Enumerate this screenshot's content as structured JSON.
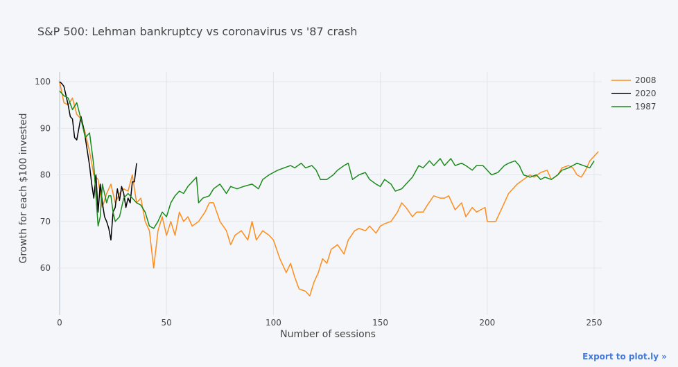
{
  "chart_data": {
    "type": "line",
    "title": "S&P 500: Lehman bankruptcy vs coronavirus vs '87 crash",
    "xlabel": "Number of sessions",
    "ylabel": "Growth for each $100 invested",
    "xlim": [
      -1,
      255
    ],
    "ylim": [
      52,
      102
    ],
    "xticks": [
      0,
      50,
      100,
      150,
      200,
      250
    ],
    "yticks": [
      60,
      70,
      80,
      90,
      100
    ],
    "grid": true,
    "legend": "top-right",
    "series": [
      {
        "name": "2008",
        "color": "#ff8c1a",
        "x": [
          0,
          2,
          4,
          6,
          8,
          10,
          12,
          14,
          16,
          18,
          20,
          22,
          24,
          26,
          28,
          30,
          32,
          34,
          36,
          38,
          40,
          42,
          44,
          46,
          48,
          50,
          52,
          54,
          56,
          58,
          60,
          62,
          65,
          68,
          70,
          72,
          75,
          78,
          80,
          82,
          85,
          88,
          90,
          92,
          95,
          98,
          100,
          103,
          106,
          108,
          110,
          112,
          115,
          117,
          119,
          121,
          123,
          125,
          127,
          130,
          133,
          135,
          138,
          140,
          143,
          145,
          148,
          150,
          152,
          155,
          158,
          160,
          162,
          165,
          167,
          170,
          172,
          175,
          178,
          180,
          182,
          185,
          188,
          190,
          193,
          195,
          197,
          199,
          200,
          202,
          204,
          206,
          208,
          210,
          212,
          214,
          217,
          220,
          222,
          225,
          228,
          230,
          233,
          235,
          238,
          240,
          242,
          244,
          246,
          248,
          250,
          252
        ],
        "y": [
          100,
          95.5,
          95,
          96.5,
          93,
          92,
          89,
          85,
          80,
          79,
          73,
          76,
          78,
          74,
          76,
          77,
          76.5,
          80,
          74,
          75,
          70,
          68,
          60,
          68,
          71,
          67,
          70,
          67,
          72,
          70,
          71,
          69,
          70,
          72,
          74,
          74,
          70,
          68,
          65,
          67,
          68,
          66,
          70,
          66,
          68,
          67,
          66,
          62,
          59,
          61,
          58,
          55.5,
          55,
          54,
          57,
          59,
          62,
          61,
          64,
          65,
          63,
          66,
          68,
          68.5,
          68,
          69,
          67.5,
          69,
          69.5,
          70,
          72,
          74,
          73,
          71,
          72,
          72,
          73.5,
          75.5,
          75,
          75,
          75.5,
          72.5,
          74,
          71,
          73,
          72,
          72.5,
          73,
          70,
          70,
          70,
          72,
          74,
          76,
          77,
          78,
          79,
          80,
          79.5,
          80.5,
          81,
          79,
          80,
          81.5,
          82,
          81.5,
          80,
          79.5,
          81,
          83,
          84,
          85
        ]
      },
      {
        "name": "2020",
        "color": "#000000",
        "x": [
          0,
          1,
          2,
          3,
          4,
          5,
          6,
          7,
          8,
          9,
          10,
          11,
          12,
          13,
          14,
          15,
          16,
          17,
          18,
          19,
          20,
          21,
          22,
          23,
          24,
          25,
          26,
          27,
          28,
          29,
          30,
          31,
          32,
          33,
          34,
          35,
          36
        ],
        "y": [
          100,
          99.6,
          99,
          97,
          95,
          92.5,
          92,
          88,
          87.5,
          90,
          92.5,
          90.5,
          88,
          85,
          82,
          78,
          75,
          80,
          72,
          78,
          74,
          71,
          70,
          68.5,
          66,
          72,
          73,
          77,
          74.5,
          77.5,
          76,
          73,
          75,
          74,
          78.5,
          78.5,
          82.5
        ]
      },
      {
        "name": "1987",
        "color": "#1a8a1a",
        "x": [
          0,
          2,
          4,
          6,
          8,
          10,
          12,
          14,
          16,
          18,
          19,
          20,
          22,
          23,
          24,
          25,
          26,
          28,
          30,
          32,
          34,
          36,
          38,
          40,
          42,
          44,
          46,
          48,
          50,
          52,
          54,
          56,
          58,
          60,
          62,
          64,
          65,
          67,
          70,
          72,
          75,
          78,
          80,
          83,
          86,
          90,
          93,
          95,
          98,
          100,
          102,
          105,
          108,
          110,
          113,
          115,
          118,
          120,
          122,
          125,
          128,
          130,
          133,
          135,
          137,
          140,
          143,
          145,
          148,
          150,
          152,
          155,
          157,
          160,
          162,
          165,
          168,
          170,
          173,
          175,
          178,
          180,
          183,
          185,
          188,
          190,
          193,
          195,
          198,
          200,
          202,
          205,
          208,
          210,
          213,
          215,
          217,
          220,
          223,
          225,
          227,
          230,
          233,
          235,
          238,
          240,
          242,
          245,
          248,
          250
        ],
        "y": [
          98,
          97,
          96.5,
          94,
          95.5,
          92,
          88,
          89,
          82,
          69,
          71,
          78,
          74,
          75.5,
          75.5,
          72,
          70,
          71,
          75,
          76,
          75,
          74,
          73.5,
          72,
          69,
          68.5,
          70,
          72,
          71,
          74,
          75.5,
          76.5,
          76,
          77.5,
          78.5,
          79.5,
          74,
          75,
          75.5,
          77,
          78,
          76,
          77.5,
          77,
          77.5,
          78,
          77,
          79,
          80,
          80.5,
          81,
          81.5,
          82,
          81.5,
          82.5,
          81.5,
          82,
          81,
          79,
          79,
          80,
          81,
          82,
          82.5,
          79,
          80,
          80.5,
          79,
          78,
          77.5,
          79,
          78,
          76.5,
          77,
          78,
          79.5,
          82,
          81.5,
          83,
          82,
          83.5,
          82,
          83.5,
          82,
          82.5,
          82,
          81,
          82,
          82,
          81,
          80,
          80.5,
          82,
          82.5,
          83,
          82,
          80,
          79.5,
          80,
          79,
          79.5,
          79,
          80,
          81,
          81.5,
          82,
          82.5,
          82,
          81.5,
          83
        ]
      }
    ]
  },
  "export_link": "Export to plot.ly »"
}
